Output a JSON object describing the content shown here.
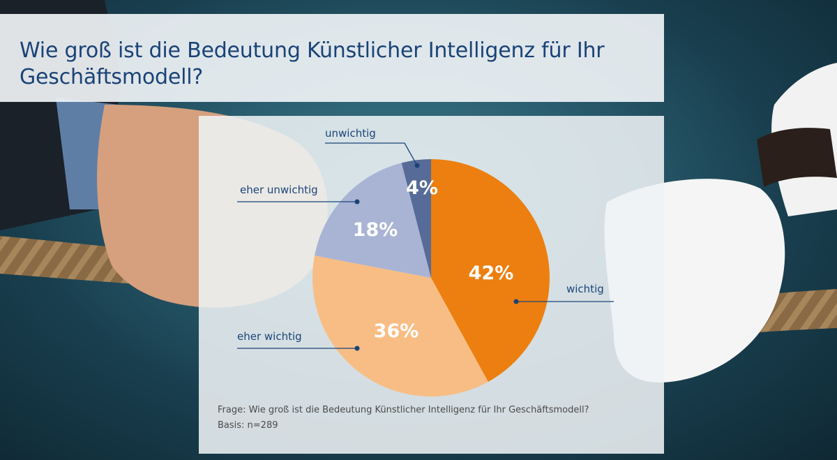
{
  "chart_data": {
    "type": "pie",
    "title": "Wie groß ist die Bedeutung Künstlicher Intelligenz für Ihr Geschäftsmodell?",
    "slices": [
      {
        "label": "wichtig",
        "value": 42,
        "display": "42%",
        "color": "#ec7f0f"
      },
      {
        "label": "eher wichtig",
        "value": 36,
        "display": "36%",
        "color": "#f8bd84"
      },
      {
        "label": "eher unwichtig",
        "value": 18,
        "display": "18%",
        "color": "#a9b4d4"
      },
      {
        "label": "unwichtig",
        "value": 4,
        "display": "4%",
        "color": "#566b97"
      }
    ],
    "start": "12 o'clock",
    "direction": "clockwise"
  },
  "footnote": {
    "question": "Frage: Wie groß ist die Bedeutung Künstlicher Intelligenz für Ihr Geschäftsmodell?",
    "basis": "Basis: n=289"
  },
  "colors": {
    "title_text": "#1a4377",
    "leader_lines": "#1a4377"
  }
}
